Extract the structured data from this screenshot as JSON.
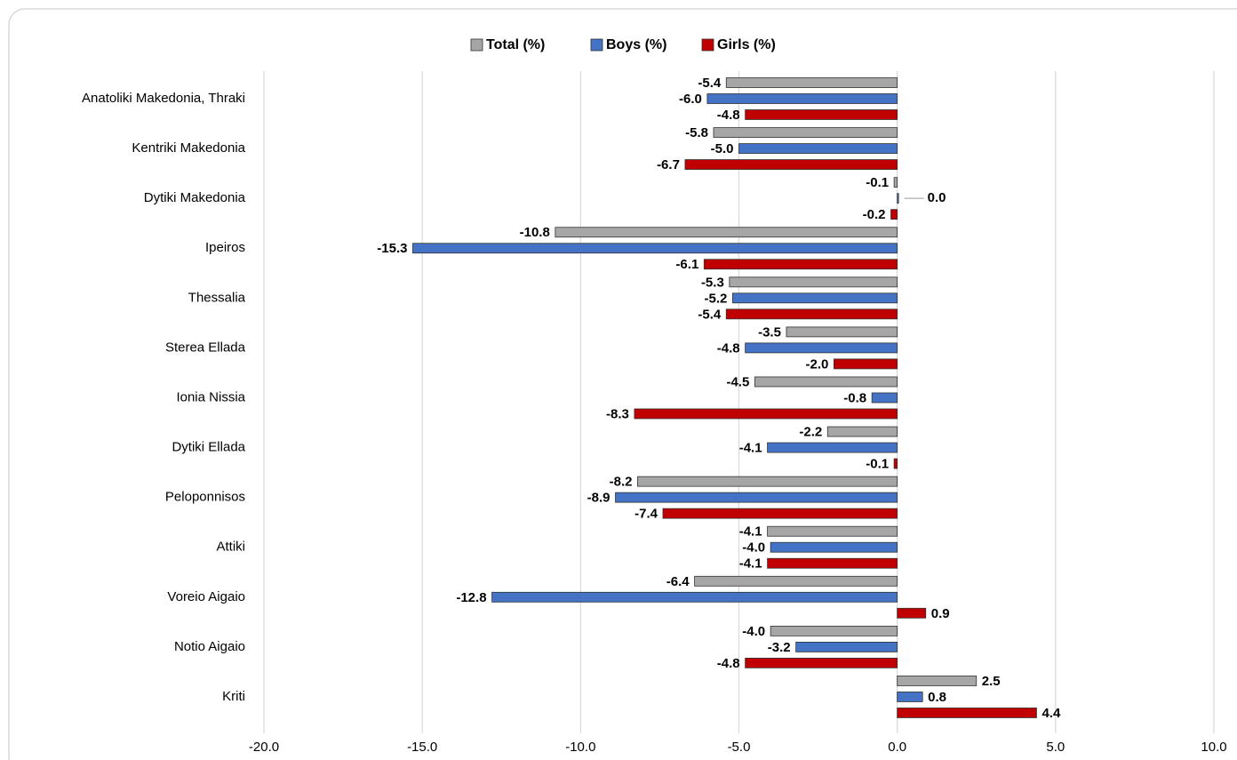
{
  "chart_data": {
    "type": "hbar",
    "categories": [
      "Anatoliki Makedonia, Thraki",
      "Kentriki Makedonia",
      "Dytiki Makedonia",
      "Ipeiros",
      "Thessalia",
      "Sterea Ellada",
      "Ionia Nissia",
      "Dytiki Ellada",
      "Peloponnisos",
      "Attiki",
      "Voreio Aigaio",
      "Notio Aigaio",
      "Kriti"
    ],
    "series": [
      {
        "name": "Total (%)",
        "color": "#a6a6a6",
        "values": [
          -5.4,
          -5.8,
          -0.1,
          -10.8,
          -5.3,
          -3.5,
          -4.5,
          -2.2,
          -8.2,
          -4.1,
          -6.4,
          -4.0,
          2.5
        ],
        "value_labels": [
          "-5.4",
          "-5.8",
          "-0.1",
          "-10.8",
          "-5.3",
          "-3.5",
          "-4.5",
          "-2.2",
          "-8.2",
          "-4.1",
          "-6.4",
          "-4.0",
          "2.5"
        ]
      },
      {
        "name": "Boys (%)",
        "color": "#4472c4",
        "values": [
          -6.0,
          -5.0,
          0.0,
          -15.3,
          -5.2,
          -4.8,
          -0.8,
          -4.1,
          -8.9,
          -4.0,
          -12.8,
          -3.2,
          0.8
        ],
        "value_labels": [
          "-6.0",
          "-5.0",
          "0.0",
          "-15.3",
          "-5.2",
          "-4.8",
          "-0.8",
          "-4.1",
          "-8.9",
          "-4.0",
          "-12.8",
          "-3.2",
          "0.8"
        ]
      },
      {
        "name": "Girls (%)",
        "color": "#c00000",
        "values": [
          -4.8,
          -6.7,
          -0.2,
          -6.1,
          -5.4,
          -2.0,
          -8.3,
          -0.1,
          -7.4,
          -4.1,
          0.9,
          -4.8,
          4.4
        ],
        "value_labels": [
          "-4.8",
          "-6.7",
          "-0.2",
          "-6.1",
          "-5.4",
          "-2.0",
          "-8.3",
          "-0.1",
          "-7.4",
          "-4.1",
          "0.9",
          "-4.8",
          "4.4"
        ]
      }
    ],
    "xlim": [
      -20,
      10
    ],
    "xticks": [
      {
        "value": -20,
        "label": "-20.0"
      },
      {
        "value": -15,
        "label": "-15.0"
      },
      {
        "value": -10,
        "label": "-10.0"
      },
      {
        "value": -5,
        "label": "-5.0"
      },
      {
        "value": 0,
        "label": "0.0"
      },
      {
        "value": 5,
        "label": "5.0"
      },
      {
        "value": 10,
        "label": "10.0"
      }
    ],
    "grid": true,
    "legend": "top"
  }
}
